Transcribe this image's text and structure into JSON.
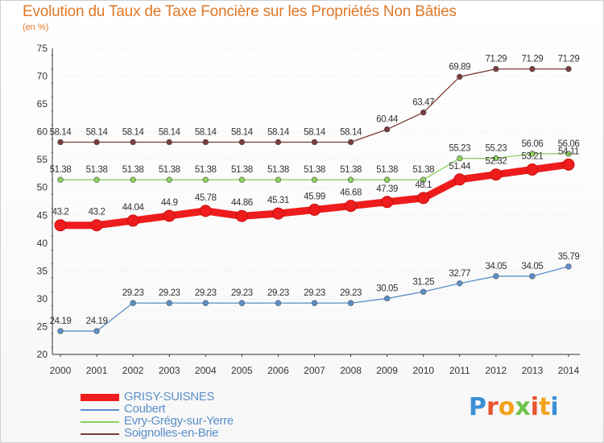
{
  "title": "Evolution du Taux de Taxe Foncière sur les Propriétés Non Bâties",
  "unit_label": "(en %)",
  "logo_text": "Proxiti",
  "chart_data": {
    "type": "line",
    "title": "Evolution du Taux de Taxe Foncière sur les Propriétés Non Bâties",
    "ylabel": "(en %)",
    "xlabel": "",
    "ylim": [
      20,
      75
    ],
    "yticks": [
      20,
      25,
      30,
      35,
      40,
      45,
      50,
      55,
      60,
      65,
      70,
      75
    ],
    "x": [
      2000,
      2001,
      2002,
      2003,
      2004,
      2005,
      2006,
      2007,
      2008,
      2009,
      2010,
      2011,
      2012,
      2013,
      2014
    ],
    "grid": true,
    "legend_position": "bottom-left",
    "series": [
      {
        "name": "GRISY-SUISNES",
        "color": "#ee1c1c",
        "emphasis": true,
        "values": [
          43.2,
          43.2,
          44.04,
          44.9,
          45.78,
          44.86,
          45.31,
          45.99,
          46.68,
          47.39,
          48.1,
          51.44,
          52.32,
          53.21,
          54.11
        ],
        "labels": [
          "43.2",
          "43.2",
          "44.04",
          "44.9",
          "45.78",
          "44.86",
          "45.31",
          "45.99",
          "46.68",
          "47.39",
          "48.1",
          "51.44",
          "52.32",
          "53.21",
          "54.11"
        ]
      },
      {
        "name": "Coubert",
        "color": "#5b8fc9",
        "values": [
          24.19,
          24.19,
          29.23,
          29.23,
          29.23,
          29.23,
          29.23,
          29.23,
          29.23,
          30.05,
          31.25,
          32.77,
          34.05,
          34.05,
          35.79
        ],
        "labels": [
          "24.19",
          "24.19",
          "29.23",
          "29.23",
          "29.23",
          "29.23",
          "29.23",
          "29.23",
          "29.23",
          "30.05",
          "31.25",
          "32.77",
          "34.05",
          "34.05",
          "35.79"
        ]
      },
      {
        "name": "Evry-Grégy-sur-Yerre",
        "color": "#8ccf5e",
        "values": [
          51.38,
          51.38,
          51.38,
          51.38,
          51.38,
          51.38,
          51.38,
          51.38,
          51.38,
          51.38,
          51.38,
          55.23,
          55.23,
          56.06,
          56.06
        ],
        "labels": [
          "51.38",
          "51.38",
          "51.38",
          "51.38",
          "51.38",
          "51.38",
          "51.38",
          "51.38",
          "51.38",
          "51.38",
          "51.38",
          "55.23",
          "55.23",
          "56.06",
          "56.06"
        ]
      },
      {
        "name": "Soignolles-en-Brie",
        "color": "#7a3b3b",
        "values": [
          58.14,
          58.14,
          58.14,
          58.14,
          58.14,
          58.14,
          58.14,
          58.14,
          58.14,
          60.44,
          63.47,
          69.89,
          71.29,
          71.29,
          71.29
        ],
        "labels": [
          "58.14",
          "58.14",
          "58.14",
          "58.14",
          "58.14",
          "58.14",
          "58.14",
          "58.14",
          "58.14",
          "60.44",
          "63.47",
          "69.89",
          "71.29",
          "71.29",
          "71.29"
        ]
      }
    ]
  }
}
